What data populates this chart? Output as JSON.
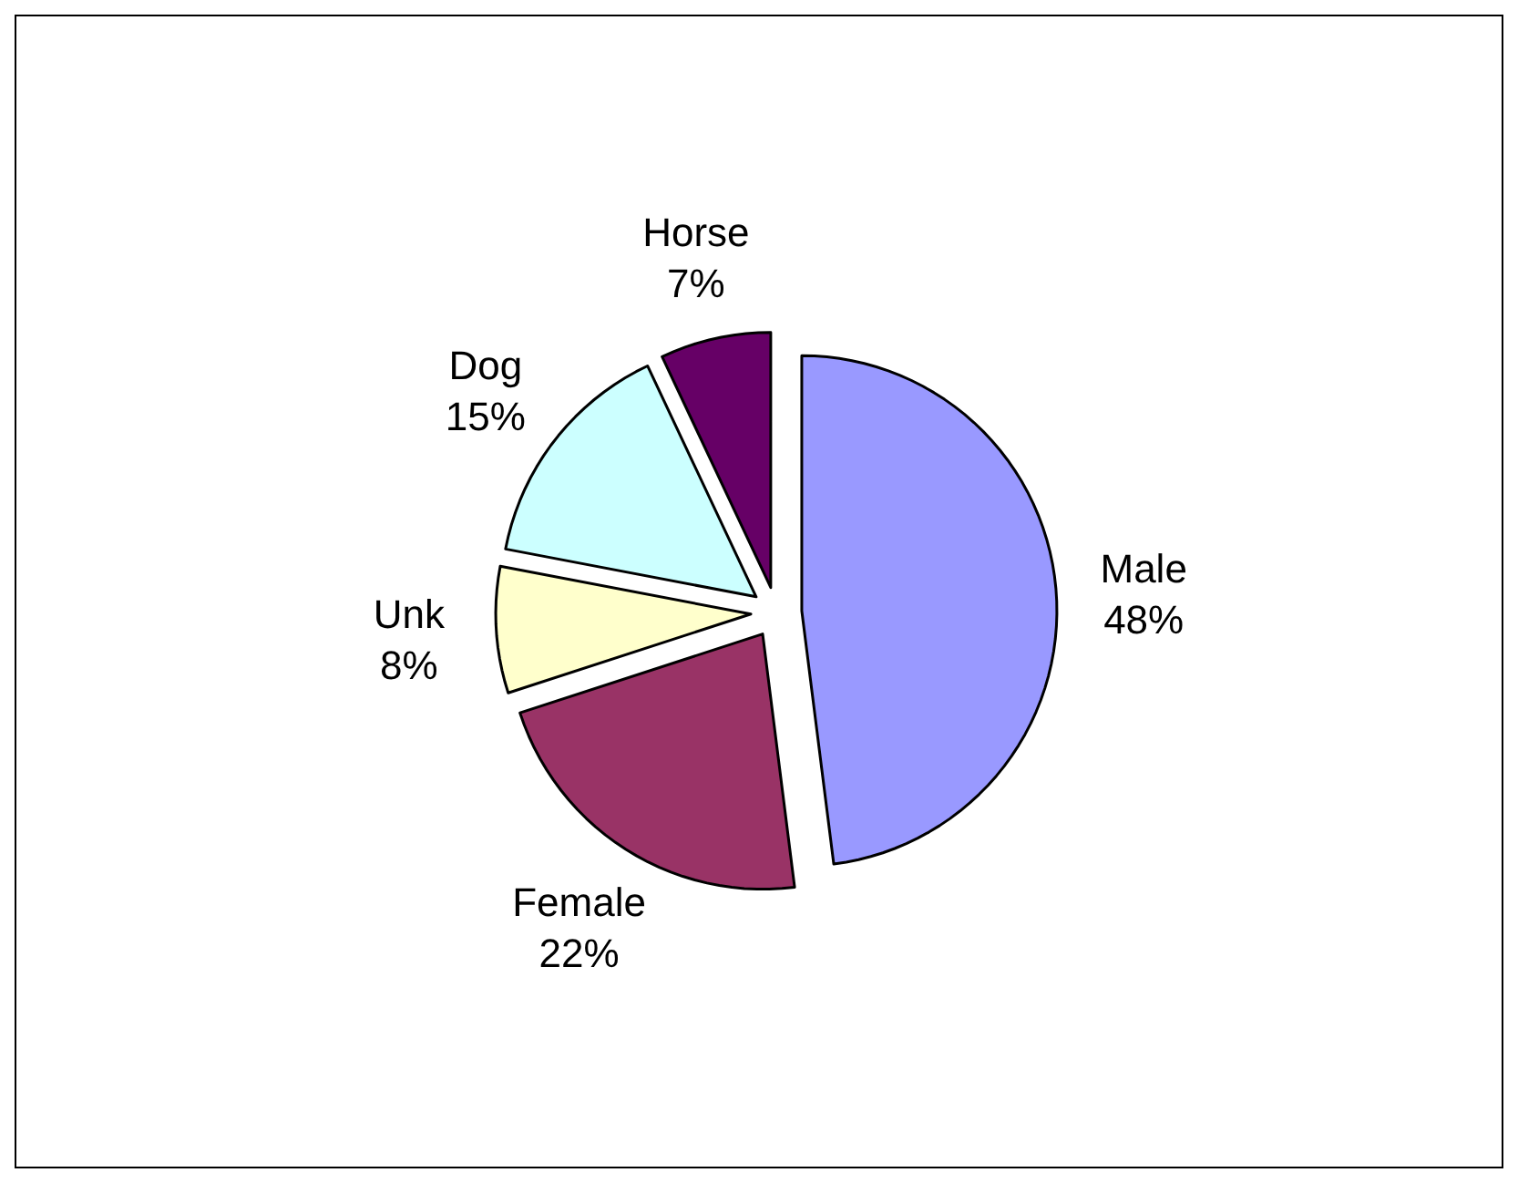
{
  "chart_data": {
    "type": "pie",
    "categories": [
      "Male",
      "Female",
      "Unk",
      "Dog",
      "Horse"
    ],
    "values": [
      48,
      22,
      8,
      15,
      7
    ],
    "value_labels": [
      "48%",
      "22%",
      "8%",
      "15%",
      "7%"
    ],
    "colors": [
      "#9999ff",
      "#993366",
      "#ffffcc",
      "#ccffff",
      "#660066"
    ]
  }
}
